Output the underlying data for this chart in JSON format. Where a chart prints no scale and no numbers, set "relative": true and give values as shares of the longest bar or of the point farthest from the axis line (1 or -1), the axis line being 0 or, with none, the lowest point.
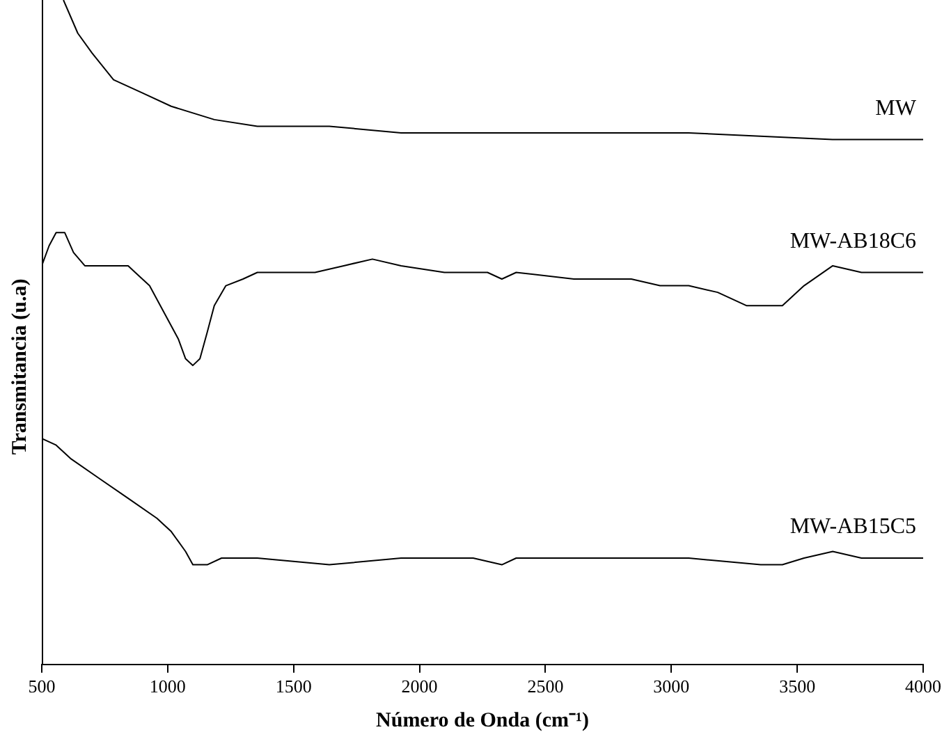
{
  "chart_data": {
    "type": "line",
    "relative": true,
    "xlabel": "Número de Onda (cm⁻¹)",
    "ylabel": "Transmitancia (u.a)",
    "xlim": [
      500,
      4000
    ],
    "xticks": [
      500,
      1000,
      1500,
      2000,
      2500,
      3000,
      3500,
      4000
    ],
    "grid": false,
    "legend": false,
    "marker": "none",
    "line_style": "solid",
    "series": [
      {
        "name": "MW",
        "color": "#000000",
        "x": [
          586,
          643,
          700,
          785,
          900,
          1014,
          1185,
          1356,
          1642,
          1927,
          2498,
          3069,
          3640,
          4000
        ],
        "values": [
          1,
          0.95,
          0.92,
          0.88,
          0.86,
          0.84,
          0.82,
          0.81,
          0.81,
          0.8,
          0.8,
          0.8,
          0.79,
          0.79
        ]
      },
      {
        "name": "MW-AB18C6",
        "color": "#000000",
        "x": [
          500,
          529,
          557,
          591,
          626,
          671,
          785,
          843,
          871,
          928,
          985,
          1042,
          1071,
          1100,
          1128,
          1157,
          1185,
          1231,
          1299,
          1356,
          1471,
          1585,
          1699,
          1813,
          1927,
          2099,
          2270,
          2327,
          2384,
          2613,
          2841,
          2955,
          3069,
          3184,
          3298,
          3384,
          3441,
          3527,
          3641,
          3755,
          4000
        ],
        "values": [
          0.6,
          0.63,
          0.65,
          0.65,
          0.62,
          0.6,
          0.6,
          0.6,
          0.59,
          0.57,
          0.53,
          0.49,
          0.46,
          0.45,
          0.46,
          0.5,
          0.54,
          0.57,
          0.58,
          0.59,
          0.59,
          0.59,
          0.6,
          0.61,
          0.6,
          0.59,
          0.59,
          0.58,
          0.59,
          0.58,
          0.58,
          0.57,
          0.57,
          0.56,
          0.54,
          0.54,
          0.54,
          0.57,
          0.6,
          0.59,
          0.59
        ]
      },
      {
        "name": "MW-AB15C5",
        "color": "#000000",
        "x": [
          500,
          557,
          614,
          728,
          843,
          957,
          1014,
          1071,
          1100,
          1128,
          1157,
          1214,
          1299,
          1356,
          1642,
          1927,
          2213,
          2327,
          2384,
          2784,
          3069,
          3355,
          3441,
          3527,
          3641,
          3755,
          4000
        ],
        "values": [
          0.34,
          0.33,
          0.31,
          0.28,
          0.25,
          0.22,
          0.2,
          0.17,
          0.15,
          0.15,
          0.15,
          0.16,
          0.16,
          0.16,
          0.15,
          0.16,
          0.16,
          0.15,
          0.16,
          0.16,
          0.16,
          0.15,
          0.15,
          0.16,
          0.17,
          0.16,
          0.16
        ]
      }
    ]
  }
}
